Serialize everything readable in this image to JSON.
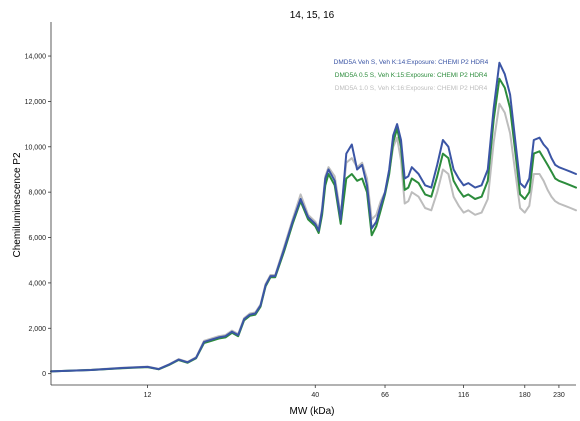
{
  "chart_data": {
    "type": "line",
    "title": "14, 15, 16",
    "xlabel": "MW (kDa)",
    "ylabel": "Chemiluminescence P2",
    "x_scale": "log",
    "xlim": [
      6,
      260
    ],
    "ylim": [
      -500,
      15500
    ],
    "x_ticks": [
      12,
      40,
      66,
      116,
      180,
      230
    ],
    "x_tick_labels": [
      "12",
      "40",
      "66",
      "116",
      "180",
      "230"
    ],
    "y_ticks": [
      0,
      2000,
      4000,
      6000,
      8000,
      10000,
      12000,
      14000
    ],
    "y_tick_labels": [
      "0",
      "2,000",
      "4,000",
      "6,000",
      "8,000",
      "10,000",
      "12,000",
      "14,000"
    ],
    "grid": false,
    "legend_position": "top-right",
    "series": [
      {
        "name": "DMD5A Veh S, Veh K:14:Exposure: CHEMI P2 HDR4",
        "color": "#3b55a5",
        "x": [
          6,
          8,
          10,
          12,
          13,
          14,
          15,
          16,
          17,
          18,
          19,
          20,
          21,
          22,
          23,
          24,
          25,
          26,
          27,
          28,
          29,
          30,
          32,
          34,
          36,
          38,
          40,
          41,
          42,
          43,
          44,
          46,
          48,
          50,
          52,
          54,
          56,
          58,
          60,
          62,
          64,
          66,
          68,
          70,
          72,
          74,
          76,
          78,
          80,
          84,
          88,
          92,
          96,
          100,
          104,
          108,
          112,
          116,
          120,
          126,
          132,
          138,
          144,
          150,
          156,
          162,
          168,
          174,
          180,
          186,
          192,
          200,
          206,
          212,
          218,
          224,
          230,
          240,
          250,
          260
        ],
        "values": [
          100,
          160,
          250,
          300,
          200,
          400,
          620,
          500,
          700,
          1400,
          1500,
          1600,
          1650,
          1850,
          1700,
          2400,
          2600,
          2650,
          3000,
          3900,
          4300,
          4300,
          5500,
          6700,
          7700,
          6900,
          6600,
          6300,
          7200,
          8600,
          9000,
          8500,
          6800,
          9700,
          10100,
          9000,
          9200,
          8300,
          6400,
          6700,
          7400,
          8000,
          9000,
          10500,
          11000,
          10300,
          8600,
          8700,
          9100,
          8800,
          8300,
          8200,
          9200,
          10300,
          10000,
          9000,
          8600,
          8300,
          8400,
          8200,
          8300,
          9000,
          11700,
          13700,
          13200,
          12300,
          10300,
          8400,
          8200,
          8600,
          10300,
          10400,
          10100,
          9900,
          9500,
          9200,
          9100,
          9000,
          8900,
          8800
        ]
      },
      {
        "name": "DMD5A 0.5 S, Veh K:15:Exposure: CHEMI P2 HDR4",
        "color": "#2c8c3c",
        "x": [
          6,
          8,
          10,
          12,
          13,
          14,
          15,
          16,
          17,
          18,
          19,
          20,
          21,
          22,
          23,
          24,
          25,
          26,
          27,
          28,
          29,
          30,
          32,
          34,
          36,
          38,
          40,
          41,
          42,
          43,
          44,
          46,
          48,
          50,
          52,
          54,
          56,
          58,
          60,
          62,
          64,
          66,
          68,
          70,
          72,
          74,
          76,
          78,
          80,
          84,
          88,
          92,
          96,
          100,
          104,
          108,
          112,
          116,
          120,
          126,
          132,
          138,
          144,
          150,
          156,
          162,
          168,
          174,
          180,
          186,
          192,
          200,
          206,
          212,
          218,
          224,
          230,
          240,
          250,
          260
        ],
        "values": [
          100,
          160,
          240,
          290,
          190,
          380,
          600,
          480,
          680,
          1350,
          1450,
          1550,
          1600,
          1800,
          1650,
          2350,
          2550,
          2600,
          2950,
          3850,
          4250,
          4250,
          5400,
          6600,
          7600,
          6800,
          6500,
          6200,
          7000,
          8300,
          8800,
          8300,
          6600,
          8600,
          8800,
          8500,
          8600,
          8000,
          6100,
          6500,
          7200,
          7900,
          8800,
          10200,
          10800,
          10000,
          8100,
          8200,
          8600,
          8400,
          7900,
          7800,
          8700,
          9700,
          9500,
          8500,
          8100,
          7800,
          7900,
          7700,
          7800,
          8500,
          11200,
          13000,
          12600,
          11700,
          9800,
          7900,
          7700,
          8000,
          9700,
          9800,
          9500,
          9200,
          8900,
          8600,
          8500,
          8400,
          8300,
          8200
        ]
      },
      {
        "name": "DMD5A 1.0 S, Veh K:16:Exposure: CHEMI P2 HDR4",
        "color": "#bdbdbd",
        "x": [
          6,
          8,
          10,
          12,
          13,
          14,
          15,
          16,
          17,
          18,
          19,
          20,
          21,
          22,
          23,
          24,
          25,
          26,
          27,
          28,
          29,
          30,
          32,
          34,
          36,
          38,
          40,
          41,
          42,
          43,
          44,
          46,
          48,
          50,
          52,
          54,
          56,
          58,
          60,
          62,
          64,
          66,
          68,
          70,
          72,
          74,
          76,
          78,
          80,
          84,
          88,
          92,
          96,
          100,
          104,
          108,
          112,
          116,
          120,
          126,
          132,
          138,
          144,
          150,
          156,
          162,
          168,
          174,
          180,
          186,
          192,
          200,
          206,
          212,
          218,
          224,
          230,
          240,
          250,
          260
        ],
        "values": [
          100,
          170,
          260,
          310,
          210,
          410,
          640,
          520,
          720,
          1450,
          1550,
          1650,
          1700,
          1900,
          1750,
          2450,
          2650,
          2700,
          3050,
          3950,
          4350,
          4350,
          5600,
          6800,
          7900,
          7000,
          6700,
          6400,
          7300,
          8700,
          9100,
          8700,
          7000,
          9300,
          9500,
          9100,
          9300,
          8600,
          6800,
          7000,
          7600,
          8000,
          8900,
          10000,
          10400,
          9400,
          7500,
          7600,
          8000,
          7800,
          7300,
          7200,
          8000,
          9000,
          8800,
          7800,
          7400,
          7100,
          7200,
          7000,
          7100,
          7700,
          10200,
          11900,
          11500,
          10600,
          8900,
          7300,
          7100,
          7400,
          8800,
          8800,
          8500,
          8100,
          7800,
          7600,
          7500,
          7400,
          7300,
          7200
        ]
      }
    ]
  }
}
